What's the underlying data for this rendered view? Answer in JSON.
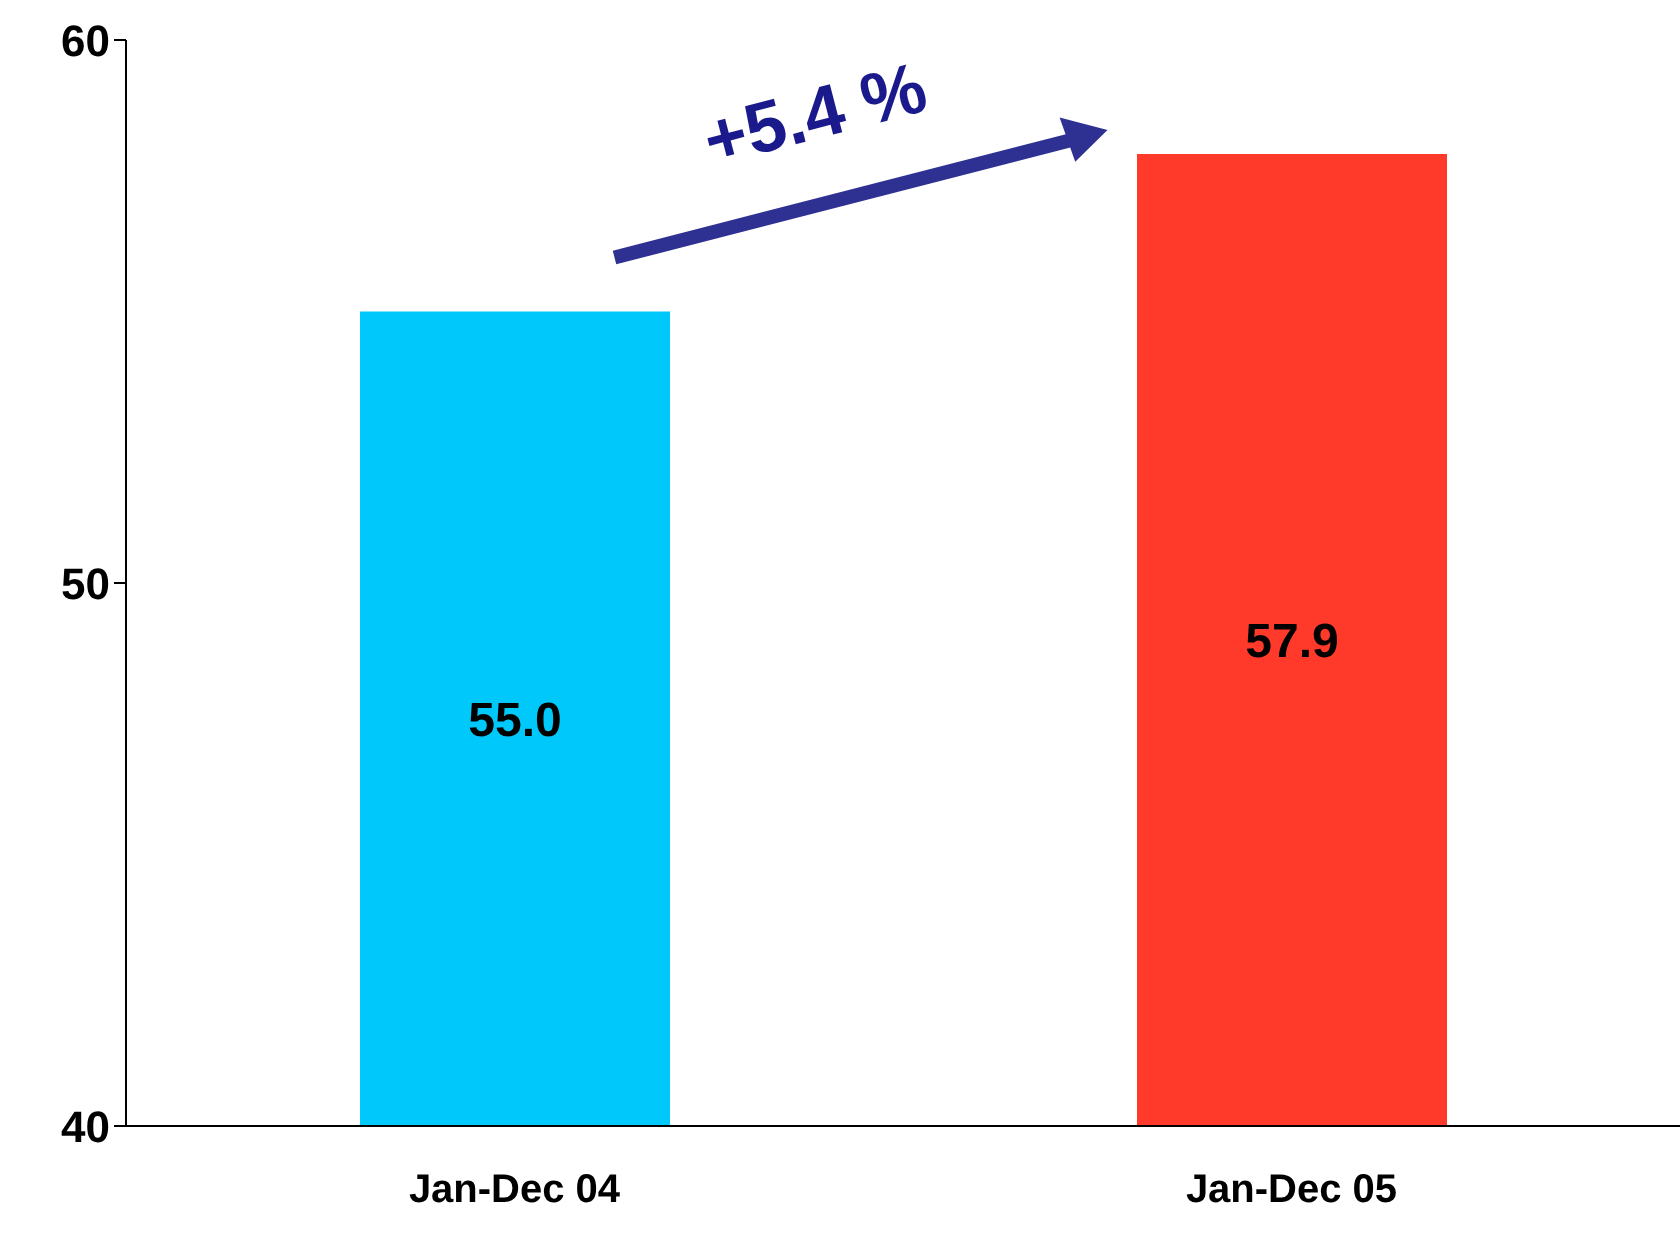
{
  "chart_data": {
    "type": "bar",
    "categories": [
      "Jan-Dec 04",
      "Jan-Dec 05"
    ],
    "values": [
      55.0,
      57.9
    ],
    "value_labels": [
      "55.0",
      "57.9"
    ],
    "colors": [
      "#00c8fa",
      "#ff3a2a"
    ],
    "ylim": [
      40,
      60
    ],
    "yticks": [
      40,
      50,
      60
    ],
    "annotations": [
      "+5.4 %"
    ]
  }
}
